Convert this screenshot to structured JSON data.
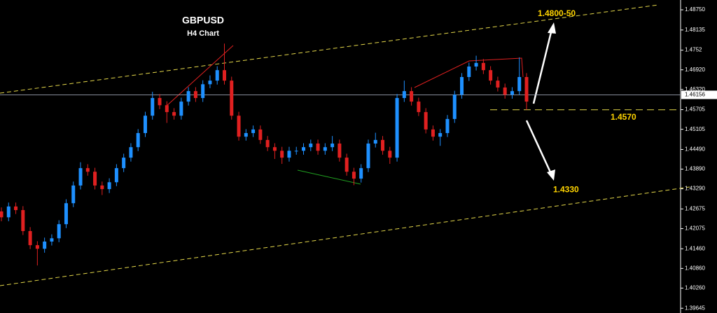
{
  "chart_data": {
    "type": "candlestick",
    "title": "GBPUSD",
    "subtitle": "H4 Chart",
    "up_color": "#1e90ff",
    "down_color": "#e02020",
    "ylim": [
      1.395,
      1.4905
    ],
    "yticks": [
      {
        "value": 1.4875,
        "label": "1.48750"
      },
      1.48135,
      1.4752,
      {
        "value": 1.4692,
        "label": "1.46920"
      },
      {
        "value": 1.4632,
        "label": "1.46320"
      },
      1.45705,
      1.45105,
      {
        "value": 1.4449,
        "label": "1.44490"
      },
      {
        "value": 1.4389,
        "label": "1.43890"
      },
      {
        "value": 1.4329,
        "label": "1.43290"
      },
      1.42675,
      1.42075,
      {
        "value": 1.4146,
        "label": "1.41460"
      },
      {
        "value": 1.4086,
        "label": "1.40860"
      },
      {
        "value": 1.4026,
        "label": "1.40260"
      },
      1.39645
    ],
    "current_price": 1.46156,
    "level": {
      "value": 1.457,
      "label": "1.4570"
    },
    "target_up": "1.4800-50",
    "target_down": {
      "value": 1.433,
      "label": "1.4330"
    },
    "open": [
      1.426,
      1.4242,
      1.4275,
      1.4264,
      1.42,
      1.4157,
      1.4146,
      1.4168,
      1.4178,
      1.4221,
      1.4285,
      1.4339,
      1.4392,
      1.4381,
      1.4339,
      1.4328,
      1.4349,
      1.4392,
      1.4424,
      1.4456,
      1.4499,
      1.4552,
      1.4606,
      1.4584,
      1.4563,
      1.4552,
      1.4595,
      1.4627,
      1.4606,
      1.4648,
      1.4659,
      1.4691,
      1.4659,
      1.4552,
      1.4488,
      1.4499,
      1.451,
      1.4478,
      1.4456,
      1.4445,
      1.4424,
      1.4445,
      1.4445,
      1.4456,
      1.4467,
      1.4445,
      1.4456,
      1.4467,
      1.4424,
      1.4381,
      1.436,
      1.4392,
      1.4467,
      1.4478,
      1.4445,
      1.4424,
      1.4606,
      1.4627,
      1.4595,
      1.4563,
      1.451,
      1.4488,
      1.4499,
      1.4542,
      1.4616,
      1.467,
      1.4702,
      1.4713,
      1.4691,
      1.4659,
      1.4638,
      1.4616,
      1.4627,
      1.467
    ],
    "high": [
      1.4272,
      1.4287,
      1.4287,
      1.4276,
      1.4212,
      1.4169,
      1.418,
      1.419,
      1.4233,
      1.4297,
      1.4351,
      1.441,
      1.4404,
      1.4393,
      1.4351,
      1.4361,
      1.4404,
      1.4436,
      1.4468,
      1.4511,
      1.4564,
      1.4625,
      1.4618,
      1.4596,
      1.4575,
      1.4607,
      1.4639,
      1.4639,
      1.466,
      1.4675,
      1.4703,
      1.4772,
      1.4671,
      1.4564,
      1.4511,
      1.4522,
      1.4522,
      1.449,
      1.4468,
      1.4457,
      1.4457,
      1.4457,
      1.4468,
      1.4479,
      1.4479,
      1.4468,
      1.449,
      1.4479,
      1.4436,
      1.4393,
      1.4404,
      1.4479,
      1.45,
      1.449,
      1.4457,
      1.4618,
      1.4659,
      1.4639,
      1.4607,
      1.4575,
      1.4522,
      1.4511,
      1.4554,
      1.4628,
      1.4682,
      1.4714,
      1.4735,
      1.4725,
      1.4703,
      1.4671,
      1.465,
      1.4639,
      1.473,
      1.4682
    ],
    "low": [
      1.423,
      1.423,
      1.4252,
      1.4188,
      1.4145,
      1.4095,
      1.4134,
      1.4156,
      1.4166,
      1.4209,
      1.4273,
      1.4327,
      1.4369,
      1.4327,
      1.431,
      1.4316,
      1.4337,
      1.438,
      1.4412,
      1.4444,
      1.4487,
      1.454,
      1.4572,
      1.453,
      1.454,
      1.454,
      1.4583,
      1.4594,
      1.4594,
      1.4636,
      1.4647,
      1.4647,
      1.454,
      1.4476,
      1.4476,
      1.4487,
      1.4466,
      1.4444,
      1.442,
      1.4405,
      1.4412,
      1.4433,
      1.4433,
      1.4444,
      1.4433,
      1.4433,
      1.4444,
      1.4412,
      1.4369,
      1.434,
      1.4348,
      1.438,
      1.4455,
      1.4433,
      1.4405,
      1.4412,
      1.4594,
      1.4583,
      1.4551,
      1.4498,
      1.4476,
      1.446,
      1.4487,
      1.453,
      1.4604,
      1.4658,
      1.469,
      1.4679,
      1.4647,
      1.4626,
      1.4604,
      1.4604,
      1.4615,
      1.457
    ],
    "close": [
      1.4242,
      1.4275,
      1.4264,
      1.42,
      1.4157,
      1.4146,
      1.4168,
      1.4178,
      1.4221,
      1.4285,
      1.4339,
      1.4392,
      1.4381,
      1.4339,
      1.4328,
      1.4349,
      1.4392,
      1.4424,
      1.4456,
      1.4499,
      1.4552,
      1.4606,
      1.4584,
      1.4563,
      1.4552,
      1.4595,
      1.4627,
      1.4606,
      1.4648,
      1.4659,
      1.4691,
      1.4659,
      1.4552,
      1.4488,
      1.4499,
      1.451,
      1.4478,
      1.4456,
      1.4445,
      1.4424,
      1.4445,
      1.4445,
      1.4456,
      1.4467,
      1.4445,
      1.4456,
      1.4467,
      1.4424,
      1.4381,
      1.436,
      1.4392,
      1.4467,
      1.4478,
      1.4445,
      1.4424,
      1.4606,
      1.4627,
      1.4595,
      1.4563,
      1.451,
      1.4488,
      1.4499,
      1.4542,
      1.4616,
      1.467,
      1.4702,
      1.4713,
      1.4691,
      1.4659,
      1.4638,
      1.4616,
      1.4627,
      1.467,
      1.4595
    ]
  }
}
